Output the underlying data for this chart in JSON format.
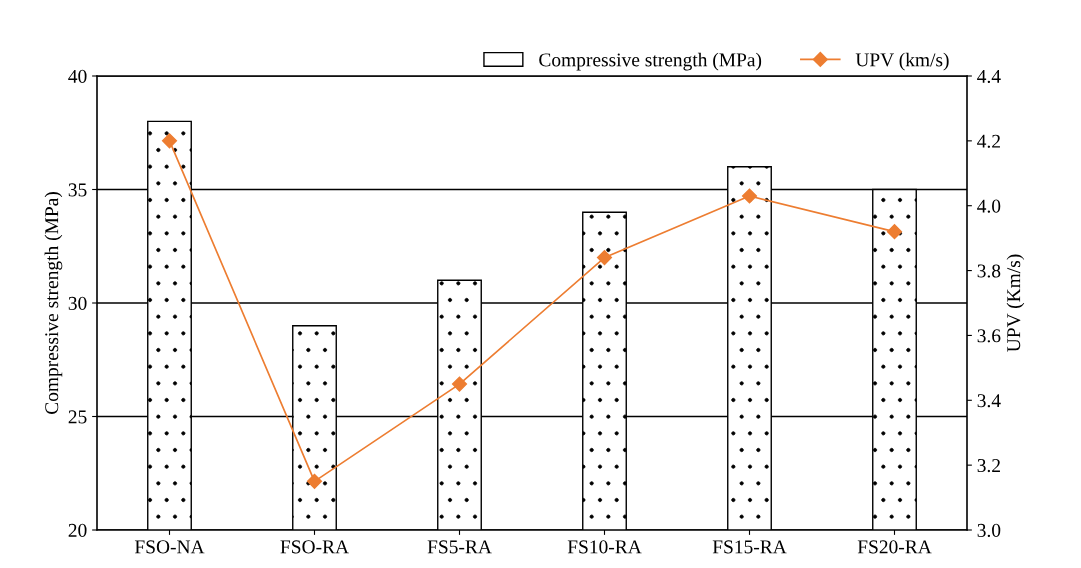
{
  "chart_data": {
    "type": "bar",
    "ylabel": "Compressive strength (MPa)",
    "y2label": "UPV (Km/s)",
    "categories": [
      "FSO-NA",
      "FSO-RA",
      "FS5-RA",
      "FS10-RA",
      "FS15-RA",
      "FS20-RA"
    ],
    "series": [
      {
        "name": "Compressive strength (MPa)",
        "color": "#ffffff",
        "values": [
          38,
          29,
          31,
          34,
          36,
          35
        ]
      },
      {
        "name": "UPV (km/s)",
        "type": "line",
        "axis": "y2",
        "color": "#ed7d31",
        "marker": "diamond",
        "values": [
          4.2,
          3.15,
          3.45,
          3.84,
          4.03,
          3.92
        ]
      }
    ],
    "ylim": [
      20,
      40
    ],
    "yticks": [
      20,
      25,
      30,
      35,
      40
    ],
    "y2lim": [
      3.0,
      4.4
    ],
    "y2ticks": [
      {
        "value": 3.0,
        "label": "3.0"
      },
      {
        "value": 3.2,
        "label": "3.2"
      },
      {
        "value": 3.4,
        "label": "3.4"
      },
      {
        "value": 3.6,
        "label": "3.6"
      },
      {
        "value": 3.8,
        "label": "3.8"
      },
      {
        "value": 4.0,
        "label": "4.0"
      },
      {
        "value": 4.2,
        "label": "4.2"
      },
      {
        "value": 4.4,
        "label": "4.4"
      }
    ],
    "grid": "y",
    "legend": "top right"
  }
}
